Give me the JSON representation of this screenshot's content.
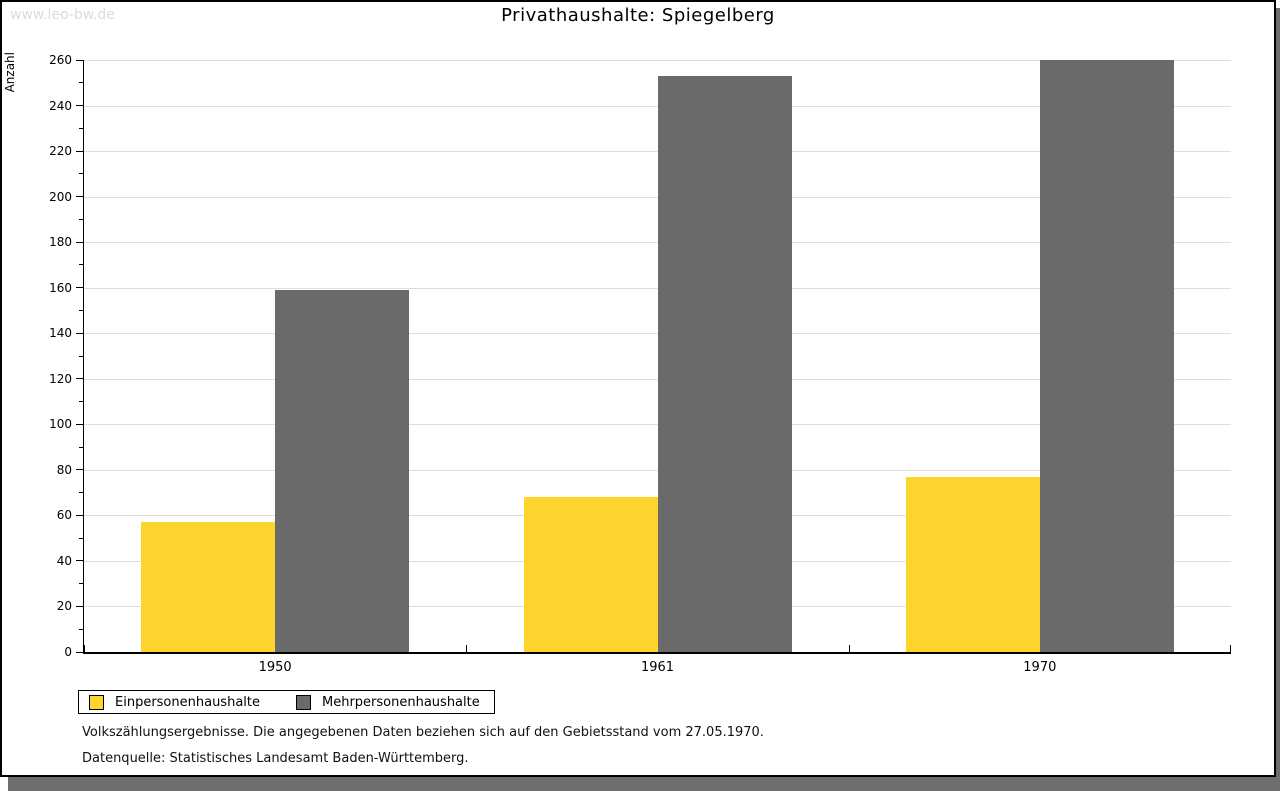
{
  "watermark": "www.leo-bw.de",
  "title": "Privathaushalte: Spiegelberg",
  "chart_data": {
    "type": "bar",
    "title": "Privathaushalte: Spiegelberg",
    "xlabel": "",
    "ylabel": "Anzahl",
    "categories": [
      "1950",
      "1961",
      "1970"
    ],
    "series": [
      {
        "name": "Einpersonenhaushalte",
        "color": "#fcd42d",
        "values": [
          57,
          68,
          77
        ]
      },
      {
        "name": "Mehrpersonenhaushalte",
        "color": "#6a6a6a",
        "values": [
          159,
          253,
          260
        ]
      }
    ],
    "ylim": [
      0,
      260
    ],
    "ytick_step": 20,
    "yminor_step": 10,
    "grid": true,
    "legend_position": "bottom-left"
  },
  "footer": {
    "line1": "Volkszählungsergebnisse. Die angegebenen Daten beziehen sich auf den Gebietsstand vom 27.05.1970.",
    "line2": "Datenquelle: Statistisches Landesamt Baden-Württemberg."
  },
  "colors": {
    "gridline": "#dedede",
    "axis": "#000000",
    "shadow": "#6e6e6e",
    "watermark": "#dbdbdb"
  }
}
